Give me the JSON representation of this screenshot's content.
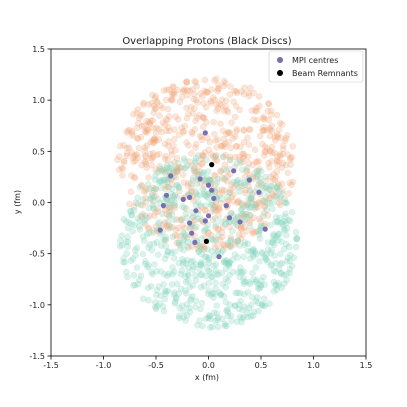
{
  "chart_data": {
    "type": "scatter",
    "title": "Overlapping Protons (Black Discs)",
    "xlabel": "x (fm)",
    "ylabel": "y (fm)",
    "xlim": [
      -1.5,
      1.5
    ],
    "ylim": [
      -1.5,
      1.5
    ],
    "xticks": [
      "-1.5",
      "-1.0",
      "-0.5",
      "0.0",
      "0.5",
      "1.0",
      "1.5"
    ],
    "yticks": [
      "-1.5",
      "-1.0",
      "-0.5",
      "0.0",
      "0.5",
      "1.0",
      "1.5"
    ],
    "grid": false,
    "legend_position": "top-right",
    "clouds": [
      {
        "color": "#f2a779",
        "center": [
          -0.02,
          0.38
        ],
        "radius": 0.85,
        "count": 700
      },
      {
        "color": "#82d4ba",
        "center": [
          0.0,
          -0.38
        ],
        "radius": 0.85,
        "count": 700
      }
    ],
    "series": [
      {
        "name": "MPI centres",
        "color": "#7570b3",
        "points": [
          [
            -0.03,
            0.68
          ],
          [
            -0.36,
            0.26
          ],
          [
            0.0,
            0.17
          ],
          [
            0.24,
            0.31
          ],
          [
            0.39,
            0.22
          ],
          [
            -0.08,
            0.23
          ],
          [
            -0.4,
            0.07
          ],
          [
            0.48,
            0.1
          ],
          [
            0.03,
            0.12
          ],
          [
            0.05,
            0.04
          ],
          [
            -0.24,
            0.03
          ],
          [
            -0.18,
            0.05
          ],
          [
            -0.43,
            -0.03
          ],
          [
            0.17,
            -0.03
          ],
          [
            -0.12,
            -0.08
          ],
          [
            0.2,
            -0.15
          ],
          [
            0.0,
            -0.13
          ],
          [
            0.3,
            -0.19
          ],
          [
            -0.03,
            -0.18
          ],
          [
            -0.18,
            -0.2
          ],
          [
            -0.46,
            -0.27
          ],
          [
            0.54,
            -0.26
          ],
          [
            -0.16,
            -0.3
          ],
          [
            -0.13,
            -0.39
          ],
          [
            0.1,
            -0.53
          ]
        ]
      },
      {
        "name": "Beam Remnants",
        "color": "#000000",
        "points": [
          [
            0.03,
            0.37
          ],
          [
            -0.02,
            -0.38
          ]
        ]
      }
    ]
  }
}
